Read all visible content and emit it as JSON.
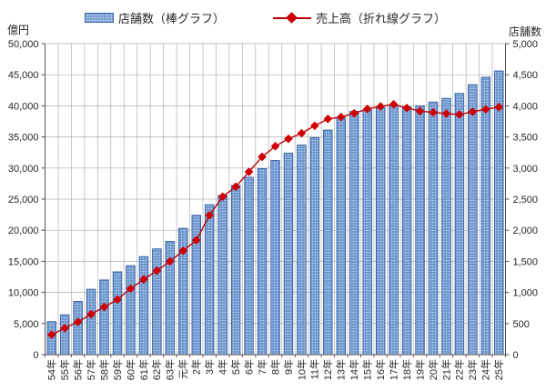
{
  "units": {
    "left": "億円",
    "right": "店舗数"
  },
  "legend": [
    {
      "id": "bar",
      "label": "店舗数（棒グラフ）"
    },
    {
      "id": "line",
      "label": "売上高（折れ線グラフ）"
    }
  ],
  "style": {
    "bar_fill": "#6d97cf",
    "bar_dot": "#c3d6ec",
    "bar_border": "#3a64a7",
    "line_color": "#c00000",
    "marker_color": "#cc0000",
    "grid_color": "#b0b0b0",
    "axis_color": "#555555",
    "tick_text_color": "#262626"
  },
  "chart_data": {
    "type": "bar+line combo",
    "title": "",
    "categories": [
      "54年",
      "55年",
      "56年",
      "57年",
      "58年",
      "59年",
      "60年",
      "61年",
      "62年",
      "63年",
      "元年",
      "2年",
      "3年",
      "4年",
      "5年",
      "6年",
      "7年",
      "8年",
      "9年",
      "10年",
      "11年",
      "12年",
      "13年",
      "14年",
      "15年",
      "16年",
      "17年",
      "18年",
      "19年",
      "20年",
      "21年",
      "22年",
      "23年",
      "24年",
      "25年"
    ],
    "series": [
      {
        "name": "店舗数（棒グラフ）",
        "type": "bar",
        "axis": "right",
        "unit": "店舗数",
        "values": [
          530,
          640,
          855,
          1050,
          1200,
          1330,
          1430,
          1575,
          1700,
          1820,
          2030,
          2240,
          2410,
          2560,
          2720,
          2850,
          2990,
          3120,
          3240,
          3370,
          3490,
          3610,
          3810,
          3910,
          3930,
          3970,
          3990,
          3980,
          4000,
          4060,
          4120,
          4200,
          4340,
          4460,
          4560
        ]
      },
      {
        "name": "売上高（折れ線グラフ）",
        "type": "line",
        "axis": "left",
        "unit": "億円",
        "values": [
          3200,
          4250,
          5250,
          6500,
          7650,
          8850,
          10600,
          12100,
          13500,
          15000,
          16700,
          18400,
          22400,
          25400,
          27000,
          29400,
          31800,
          33500,
          34700,
          35600,
          36800,
          37900,
          38200,
          38800,
          39500,
          39900,
          40250,
          39650,
          39150,
          38950,
          38750,
          38600,
          39050,
          39450,
          39800
        ]
      }
    ],
    "left_axis": {
      "min": 0,
      "max": 50000,
      "step": 5000,
      "tick_labels": [
        "0",
        "5,000",
        "10,000",
        "15,000",
        "20,000",
        "25,000",
        "30,000",
        "35,000",
        "40,000",
        "45,000",
        "50,000"
      ]
    },
    "right_axis": {
      "min": 0,
      "max": 5000,
      "step": 500,
      "tick_labels": [
        "0",
        "500",
        "1,000",
        "1,500",
        "2,000",
        "2,500",
        "3,000",
        "3,500",
        "4,000",
        "4,500",
        "5,000"
      ]
    },
    "grid": "horizontal and vertical category gridlines",
    "legend_position": "top"
  }
}
